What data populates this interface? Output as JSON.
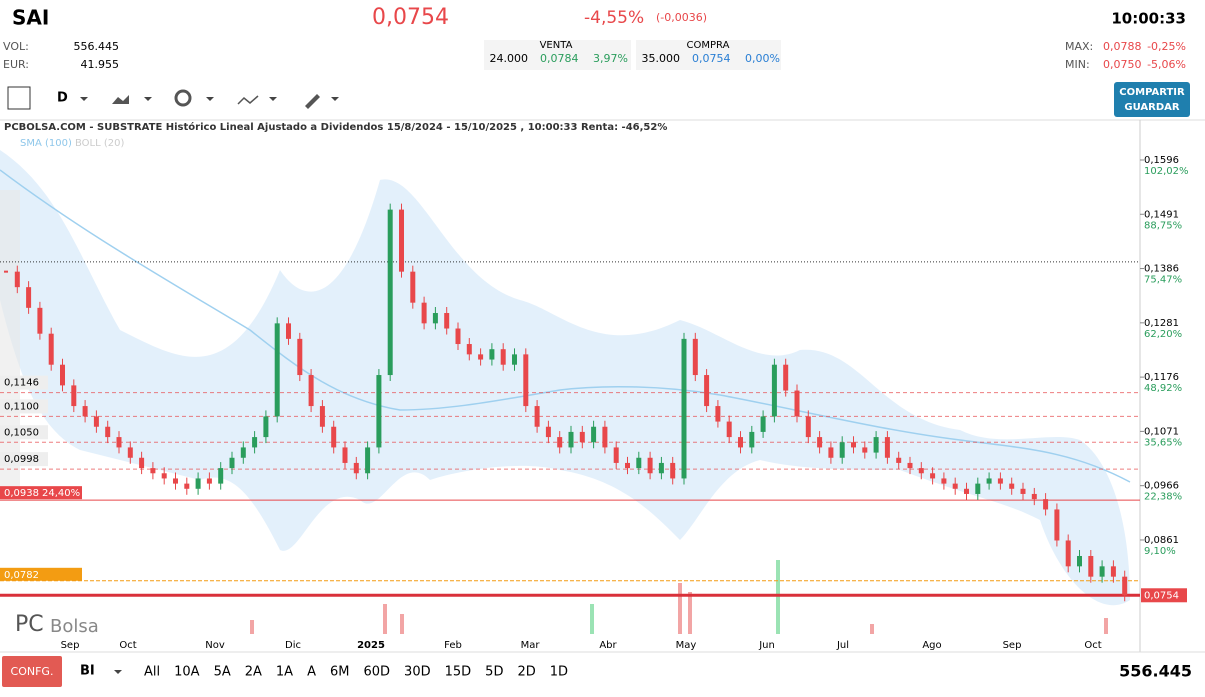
{
  "header": {
    "symbol": "SAI",
    "price": "0,0754",
    "change_pct": "-4,55%",
    "change_abs": "(-0,0036)",
    "time": "10:00:33",
    "vol_label": "VOL:",
    "vol": "556.445",
    "eur_label": "EUR:",
    "eur": "41.955",
    "venta": {
      "title": "VENTA",
      "qty": "24.000",
      "price": "0,0784",
      "pct": "3,97%"
    },
    "compra": {
      "title": "COMPRA",
      "qty": "35.000",
      "price": "0,0754",
      "pct": "0,00%"
    },
    "max_label": "MAX:",
    "max": "0,0788",
    "max_pct": "-0,25%",
    "min_label": "MIN:",
    "min": "0,0750",
    "min_pct": "-5,06%"
  },
  "toolbar": {
    "period": "D",
    "share": "COMPARTIR",
    "save": "GUARDAR"
  },
  "chart": {
    "title": "PCBOLSA.COM - SUBSTRATE Histórico Lineal Ajustado a Dividendos 15/8/2024 - 15/10/2025 , 10:00:33 Renta: -46,52%",
    "indicators": [
      "SMA (100)",
      "BOLL (20)"
    ],
    "watermark_a": "PC",
    "watermark_b": "Bolsa",
    "ylim": [
      0.0741,
      0.1654
    ],
    "yticks": [
      {
        "value": 0.1596,
        "label": "0,1596"
      },
      {
        "value": 0.1491,
        "label": "0,1491"
      },
      {
        "value": 0.1386,
        "label": "0,1386"
      },
      {
        "value": 0.1281,
        "label": "0,1281"
      },
      {
        "value": 0.1176,
        "label": "0,1176"
      },
      {
        "value": 0.1071,
        "label": "0,1071"
      },
      {
        "value": 0.0966,
        "label": "0,0966"
      },
      {
        "value": 0.0861,
        "label": "0,0861"
      }
    ],
    "ytick_pcts": [
      "102,02%",
      "88,75%",
      "75,47%",
      "62,20%",
      "48,92%",
      "35,65%",
      "22,38%",
      "9,10%"
    ],
    "levels": [
      {
        "value": 0.1146,
        "label": "0,1146"
      },
      {
        "value": 0.11,
        "label": "0,1100"
      },
      {
        "value": 0.105,
        "label": "0,1050"
      },
      {
        "value": 0.0998,
        "label": "0,0998"
      }
    ],
    "support": {
      "value": 0.0938,
      "label": "0,0938",
      "pct": "24,40%"
    },
    "bid_line": {
      "value": 0.0782,
      "label": "0,0782"
    },
    "last_line": {
      "value": 0.0754,
      "label": "0,0754"
    },
    "dotted_line": 0.1399,
    "months": [
      "Sep",
      "Oct",
      "Nov",
      "Dic",
      "2025",
      "Feb",
      "Mar",
      "Abr",
      "May",
      "Jun",
      "Jul",
      "Ago",
      "Sep",
      "Oct"
    ],
    "closes": [
      0.138,
      0.135,
      0.131,
      0.126,
      0.12,
      0.116,
      0.112,
      0.11,
      0.108,
      0.106,
      0.104,
      0.102,
      0.1,
      0.099,
      0.098,
      0.097,
      0.096,
      0.098,
      0.097,
      0.1,
      0.102,
      0.104,
      0.106,
      0.11,
      0.128,
      0.125,
      0.118,
      0.112,
      0.108,
      0.104,
      0.101,
      0.099,
      0.104,
      0.118,
      0.15,
      0.138,
      0.132,
      0.128,
      0.13,
      0.127,
      0.124,
      0.122,
      0.121,
      0.123,
      0.12,
      0.122,
      0.112,
      0.108,
      0.106,
      0.104,
      0.107,
      0.105,
      0.108,
      0.104,
      0.101,
      0.1,
      0.102,
      0.099,
      0.101,
      0.098,
      0.125,
      0.118,
      0.112,
      0.109,
      0.106,
      0.104,
      0.107,
      0.11,
      0.12,
      0.115,
      0.11,
      0.106,
      0.104,
      0.102,
      0.105,
      0.104,
      0.103,
      0.106,
      0.102,
      0.101,
      0.1,
      0.099,
      0.098,
      0.097,
      0.096,
      0.095,
      0.097,
      0.098,
      0.097,
      0.096,
      0.095,
      0.094,
      0.092,
      0.086,
      0.081,
      0.083,
      0.079,
      0.081,
      0.079,
      0.0754
    ]
  },
  "footer": {
    "config": "CONFG.",
    "mode": "BI",
    "periods": [
      "All",
      "10A",
      "5A",
      "2A",
      "1A",
      "A",
      "6M",
      "60D",
      "30D",
      "15D",
      "5D",
      "2D",
      "1D"
    ],
    "volume": "556.445"
  }
}
